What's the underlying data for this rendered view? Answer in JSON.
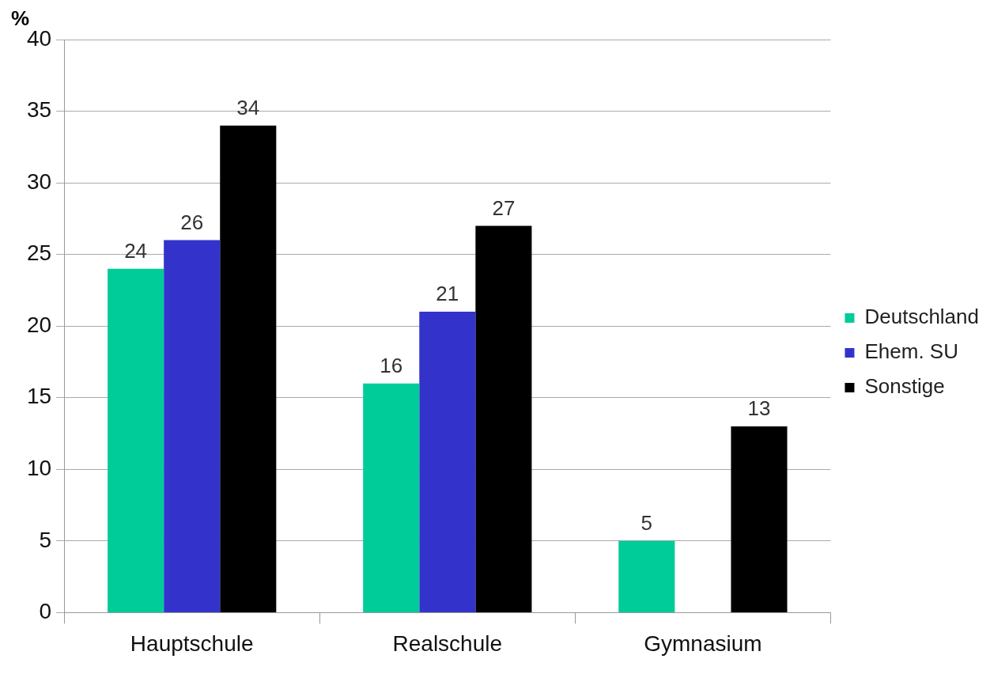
{
  "chart_data": {
    "type": "bar",
    "ylabel": "%",
    "categories": [
      "Hauptschule",
      "Realschule",
      "Gymnasium"
    ],
    "series": [
      {
        "name": "Deutschland",
        "color": "#00cc99",
        "values": [
          24,
          16,
          5
        ]
      },
      {
        "name": "Ehem. SU",
        "color": "#3333cc",
        "values": [
          26,
          21,
          null
        ]
      },
      {
        "name": "Sonstige",
        "color": "#000000",
        "values": [
          34,
          27,
          13
        ]
      }
    ],
    "ylim": [
      0,
      40
    ],
    "yticks": [
      0,
      5,
      10,
      15,
      20,
      25,
      30,
      35,
      40
    ],
    "grid": "y",
    "legend": "right",
    "data_labels": true
  }
}
